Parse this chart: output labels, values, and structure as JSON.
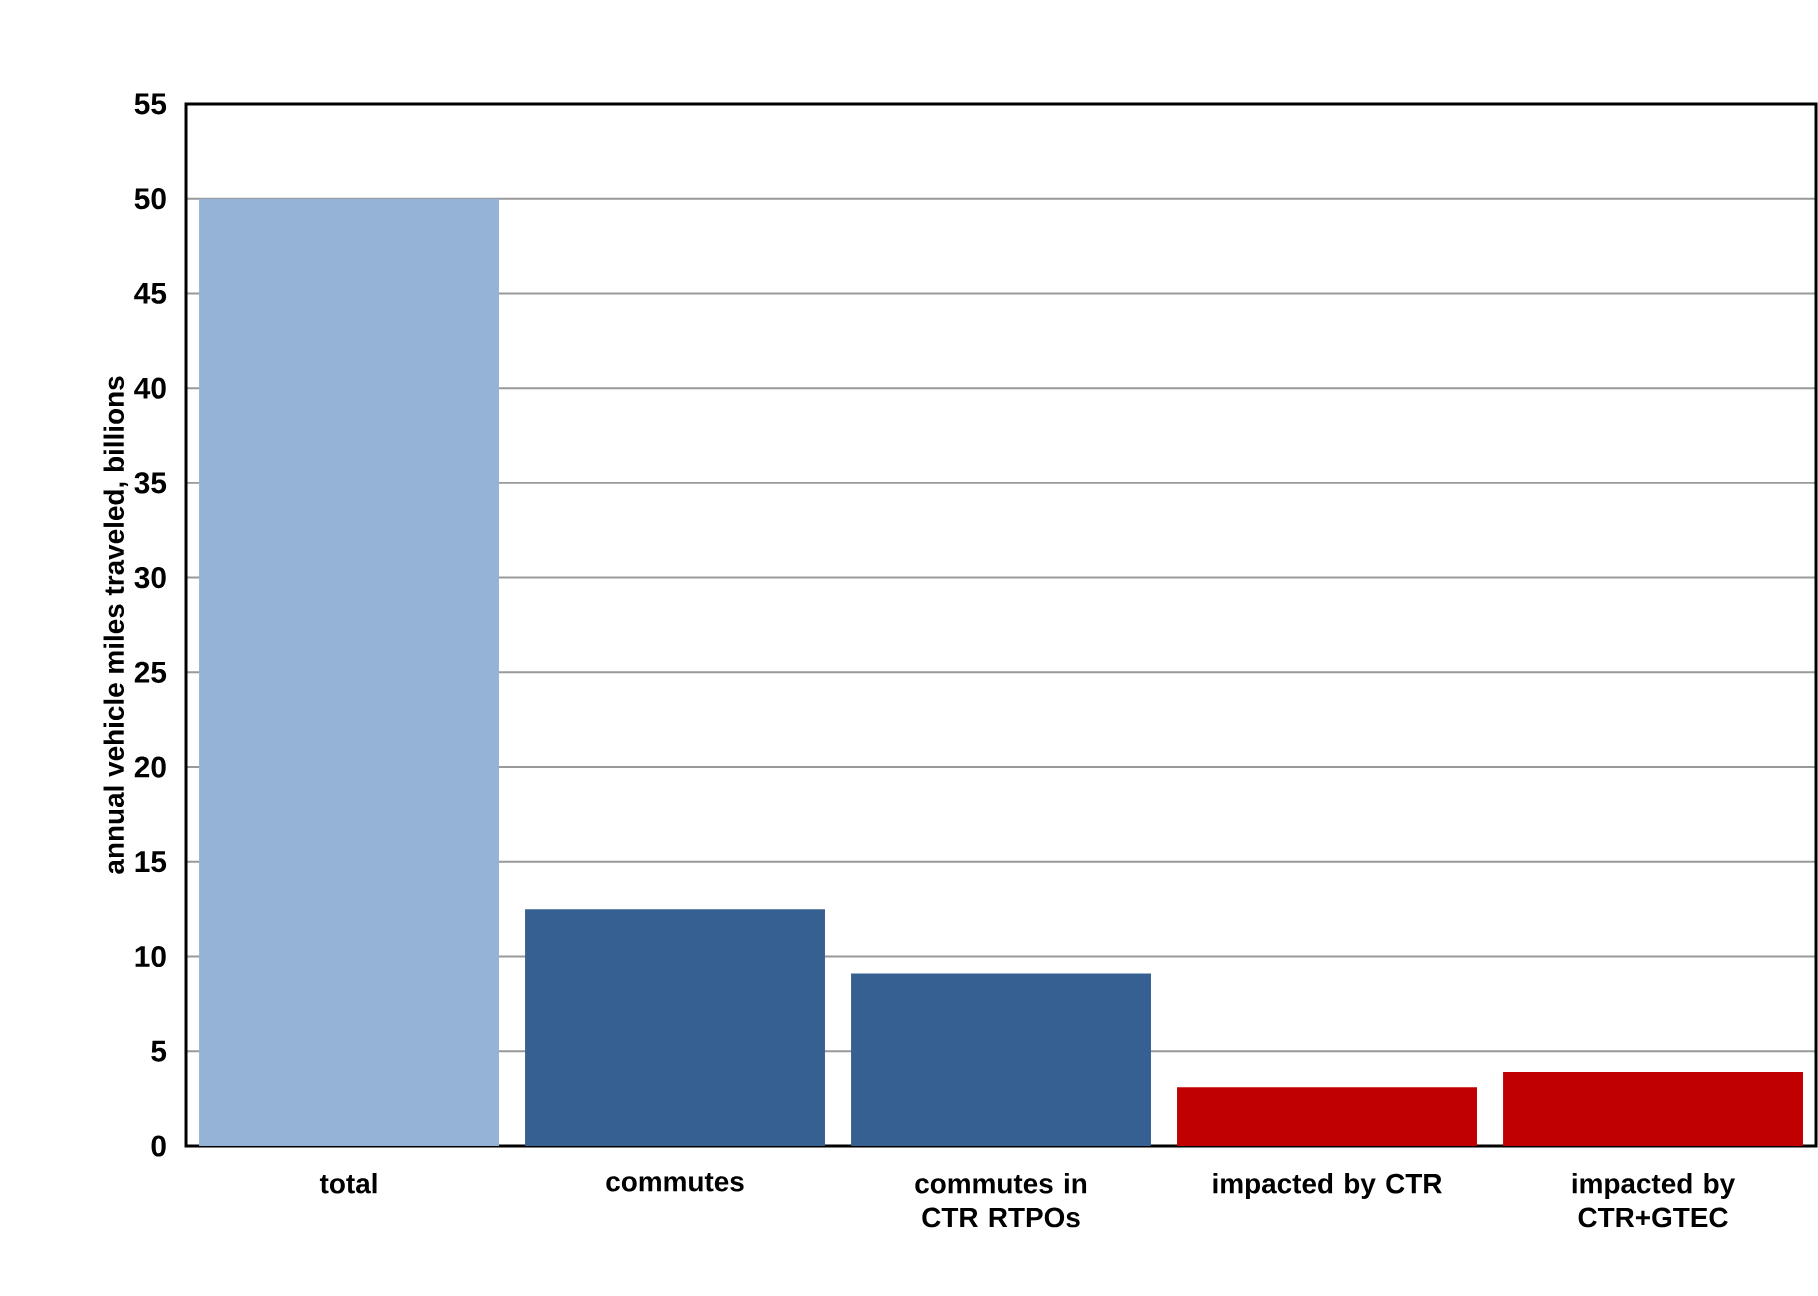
{
  "chart_data": {
    "type": "bar",
    "ylabel": "annual vehicle miles traveled, billions",
    "categories": [
      "total",
      "commutes",
      "commutes in CTR RTPOs",
      "impacted by CTR",
      "impacted by CTR+GTEC"
    ],
    "values": [
      50,
      12.5,
      9.1,
      3.1,
      3.9
    ],
    "colors": [
      "#95b3d7",
      "#366092",
      "#366092",
      "#c00000",
      "#c00000"
    ],
    "ylim": [
      0,
      55
    ],
    "yticks": [
      0,
      5,
      10,
      15,
      20,
      25,
      30,
      35,
      40,
      45,
      50,
      55
    ],
    "grid": "y"
  }
}
